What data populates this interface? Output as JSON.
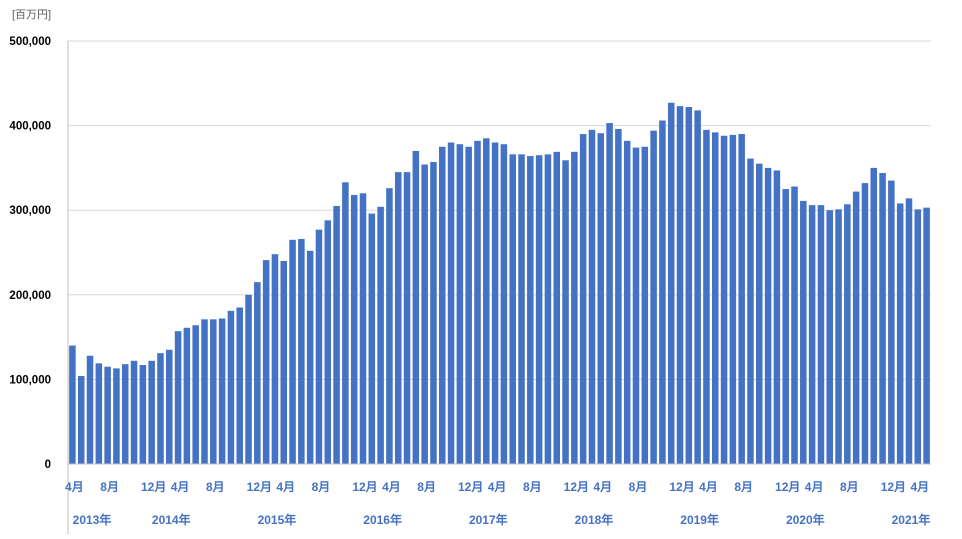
{
  "chart_data": {
    "type": "bar",
    "unit_label": "[百万円]",
    "ylim": [
      0,
      500000
    ],
    "yticks": [
      0,
      100000,
      200000,
      300000,
      400000,
      500000
    ],
    "ytick_labels": [
      "0",
      "100,000",
      "200,000",
      "300,000",
      "400,000",
      "500,000"
    ],
    "grid": true,
    "legend": "none",
    "bar_color": "#4472c4",
    "label_color": "#4472c4",
    "values": [
      140000,
      104000,
      128000,
      119000,
      115000,
      113000,
      118000,
      122000,
      117000,
      122000,
      131000,
      135000,
      157000,
      161000,
      164000,
      171000,
      171000,
      172000,
      181000,
      185000,
      200000,
      215000,
      241000,
      248000,
      240000,
      265000,
      266000,
      252000,
      277000,
      288000,
      305000,
      333000,
      318000,
      320000,
      296000,
      304000,
      326000,
      345000,
      345000,
      370000,
      354000,
      357000,
      375000,
      380000,
      378000,
      375000,
      382000,
      385000,
      380000,
      378000,
      366000,
      366000,
      364000,
      365000,
      366000,
      369000,
      359000,
      369000,
      390000,
      395000,
      391000,
      403000,
      396000,
      382000,
      374000,
      375000,
      394000,
      406000,
      427000,
      423000,
      422000,
      418000,
      395000,
      392000,
      388000,
      389000,
      390000,
      361000,
      355000,
      350000,
      347000,
      325000,
      328000,
      311000,
      306000,
      306000,
      300000,
      301000,
      307000,
      322000,
      332000,
      350000,
      344000,
      335000,
      308000,
      314000,
      301000,
      303000
    ],
    "month_labels": [
      {
        "index": 0,
        "text": "4月"
      },
      {
        "index": 4,
        "text": "8月"
      },
      {
        "index": 9,
        "text": "12月"
      },
      {
        "index": 12,
        "text": "4月"
      },
      {
        "index": 16,
        "text": "8月"
      },
      {
        "index": 21,
        "text": "12月"
      },
      {
        "index": 24,
        "text": "4月"
      },
      {
        "index": 28,
        "text": "8月"
      },
      {
        "index": 33,
        "text": "12月"
      },
      {
        "index": 36,
        "text": "4月"
      },
      {
        "index": 40,
        "text": "8月"
      },
      {
        "index": 45,
        "text": "12月"
      },
      {
        "index": 48,
        "text": "4月"
      },
      {
        "index": 52,
        "text": "8月"
      },
      {
        "index": 57,
        "text": "12月"
      },
      {
        "index": 60,
        "text": "4月"
      },
      {
        "index": 64,
        "text": "8月"
      },
      {
        "index": 69,
        "text": "12月"
      },
      {
        "index": 72,
        "text": "4月"
      },
      {
        "index": 76,
        "text": "8月"
      },
      {
        "index": 81,
        "text": "12月"
      },
      {
        "index": 84,
        "text": "4月"
      },
      {
        "index": 88,
        "text": "8月"
      },
      {
        "index": 93,
        "text": "12月"
      },
      {
        "index": 96,
        "text": "4月"
      }
    ],
    "year_labels": [
      {
        "index": 2,
        "text": "2013年"
      },
      {
        "index": 11,
        "text": "2014年"
      },
      {
        "index": 23,
        "text": "2015年"
      },
      {
        "index": 35,
        "text": "2016年"
      },
      {
        "index": 47,
        "text": "2017年"
      },
      {
        "index": 59,
        "text": "2018年"
      },
      {
        "index": 71,
        "text": "2019年"
      },
      {
        "index": 83,
        "text": "2020年"
      },
      {
        "index": 95,
        "text": "2021年"
      }
    ]
  }
}
